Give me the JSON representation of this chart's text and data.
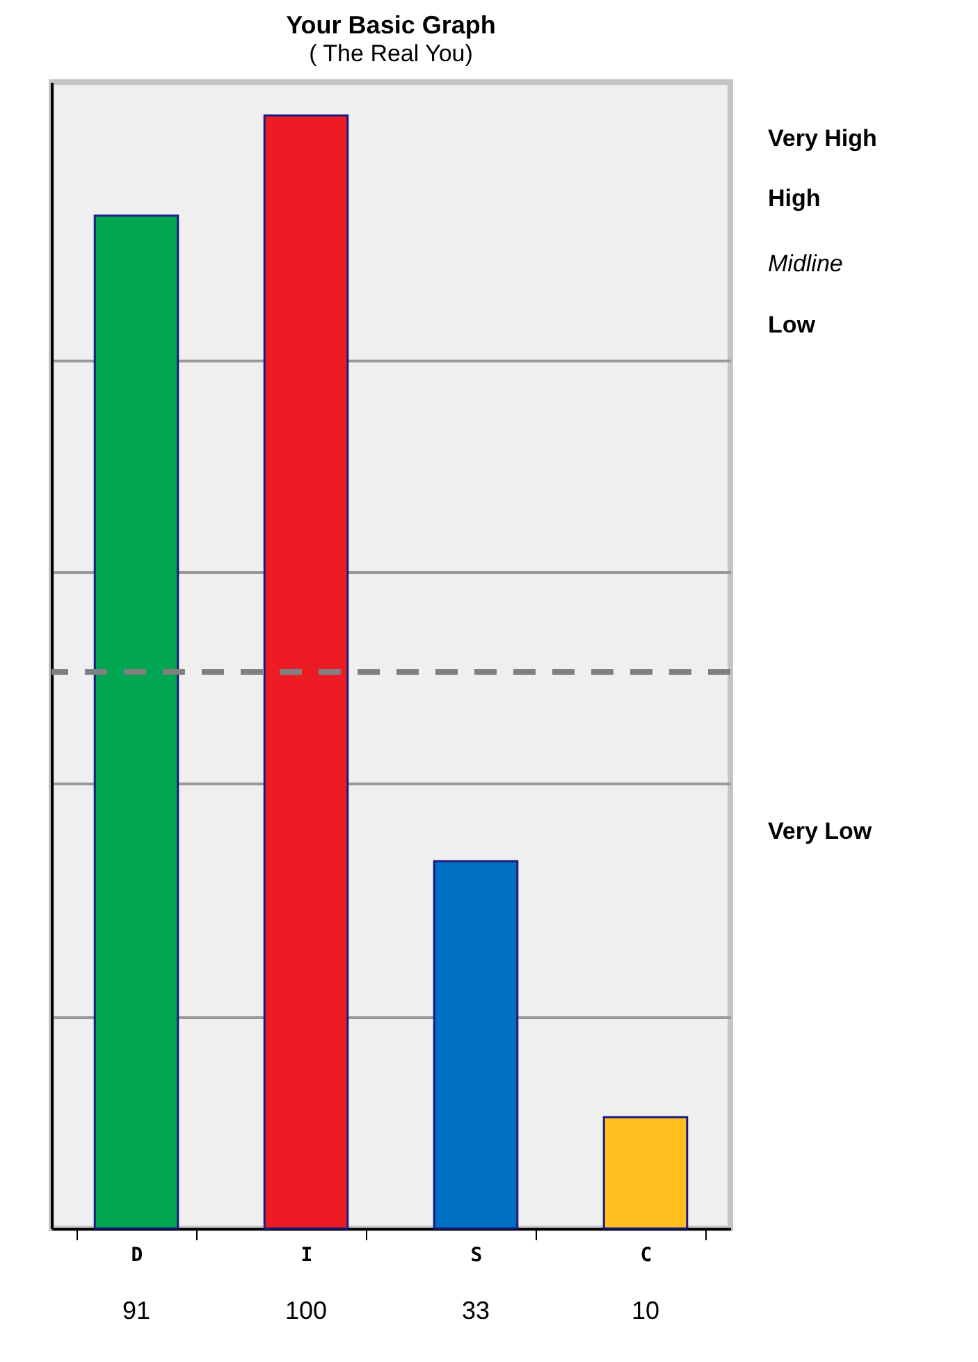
{
  "chart_data": {
    "type": "bar",
    "title": "Your Basic Graph",
    "subtitle": "( The Real You)",
    "categories": [
      "D",
      "I",
      "S",
      "C"
    ],
    "values": [
      91,
      100,
      33,
      10
    ],
    "colors": [
      "#00a651",
      "#ed1c24",
      "#0070c0",
      "#ffc020"
    ],
    "data_labels": true,
    "ylim": [
      0,
      103
    ],
    "yticks": [
      {
        "value": 19,
        "label": null
      },
      {
        "value": 40,
        "label": null
      },
      {
        "value": 59,
        "label": null
      },
      {
        "value": 78,
        "label": null
      }
    ],
    "grid": "y",
    "tick_labels": "x",
    "ref_lines": [
      {
        "axis": "y",
        "value": 50,
        "label": null,
        "color": "#808080",
        "line_style": "dashed"
      }
    ],
    "annotations": [
      "Very High",
      "High",
      "Midline",
      "Low",
      "Very Low"
    ]
  }
}
